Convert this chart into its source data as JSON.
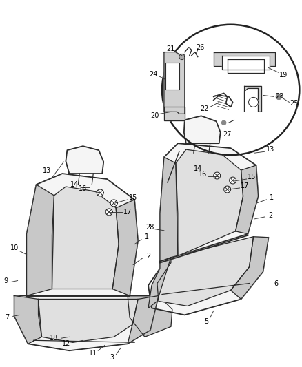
{
  "background_color": "#ffffff",
  "line_color": "#2a2a2a",
  "label_color": "#000000",
  "figsize": [
    4.38,
    5.33
  ],
  "dpi": 100,
  "seat_fill": "#f5f5f5",
  "seat_dark": "#e0e0e0",
  "seat_darker": "#c8c8c8",
  "part_fill": "#d0d0d0"
}
